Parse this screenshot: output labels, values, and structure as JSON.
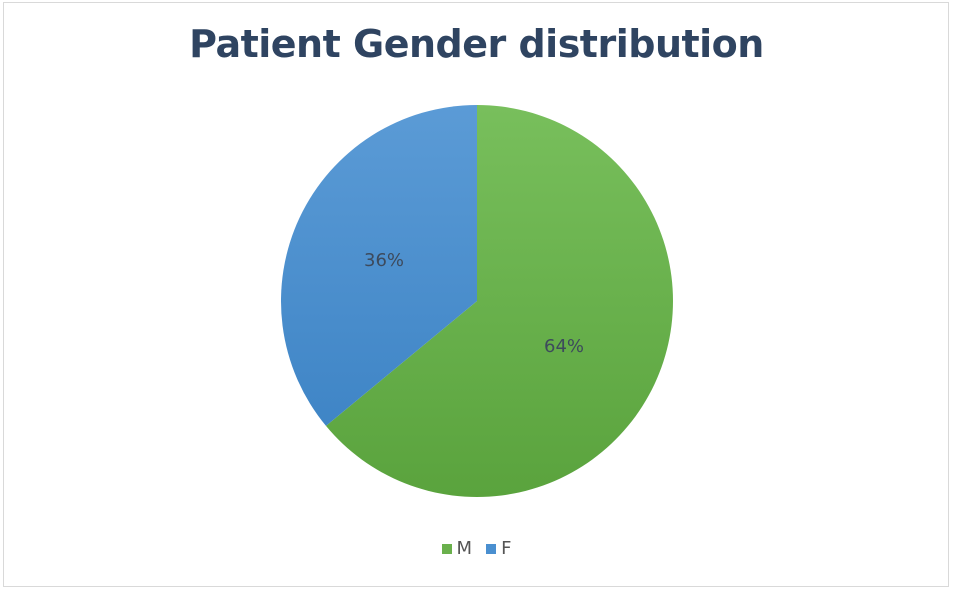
{
  "chart_data": {
    "type": "pie",
    "title": "Patient Gender distribution",
    "categories": [
      "M",
      "F"
    ],
    "values": [
      64,
      36
    ],
    "labels": [
      "64%",
      "36%"
    ],
    "colors": [
      "#6ab04c",
      "#4a8fd0"
    ],
    "legend_position": "bottom"
  },
  "legend": {
    "items": [
      {
        "label": "M",
        "color": "#6ab04c"
      },
      {
        "label": "F",
        "color": "#4a8fd0"
      }
    ]
  }
}
